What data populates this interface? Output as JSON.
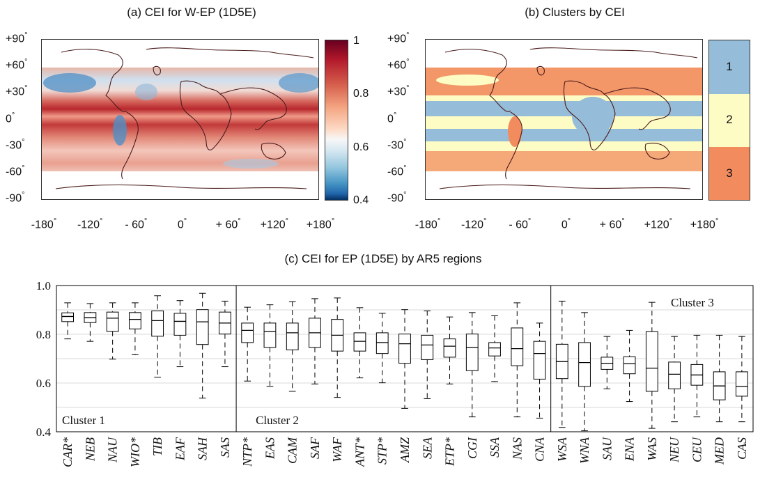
{
  "panels": {
    "a_title": "(a) CEI for W-EP (1D5E)",
    "b_title": "(b) Clusters by CEI",
    "c_title": "(c) CEI for EP (1D5E) by AR5 regions"
  },
  "map_ticks": {
    "lat": [
      "+90",
      "+60",
      "+30",
      "0",
      "-30",
      "-60",
      "-90"
    ],
    "lon": [
      "-180",
      "-120",
      "- 60",
      "0",
      "+ 60",
      "+120",
      "+180"
    ],
    "degree": "°"
  },
  "colorbar_a": {
    "labels": [
      "1",
      "0.8",
      "0.6",
      "0.4"
    ],
    "min": 0.4,
    "max": 1.0
  },
  "colorbar_b": {
    "labels": [
      "1",
      "2",
      "3"
    ],
    "colors": {
      "cluster1": "#95bcd8",
      "cluster2": "#fdfcc4",
      "cluster3": "#f28c5f"
    }
  },
  "colors": {
    "map_red": "#c3323a",
    "map_red_light": "#e8917f",
    "map_blue": "#4f8fc6",
    "map_white": "#f6f1ee",
    "coast": "#4a1a1a"
  },
  "chart_data": {
    "type": "boxplot",
    "ylim": [
      0.4,
      1.0
    ],
    "yticks": [
      "1.0",
      "0.8",
      "0.6",
      "0.4"
    ],
    "yticks_values": [
      1.0,
      0.8,
      0.6,
      0.4
    ],
    "gridlines": [
      0.5,
      0.6,
      0.7,
      0.8,
      0.9,
      1.0
    ],
    "cluster_labels": [
      "Cluster 1",
      "Cluster 2",
      "Cluster 3"
    ],
    "categories": [
      "CAR*",
      "NEB",
      "NAU",
      "WIO*",
      "TIB",
      "EAF",
      "SAH",
      "SAS",
      "NTP*",
      "EAS",
      "CAM",
      "SAF",
      "WAF",
      "ANT*",
      "STP*",
      "AMZ",
      "SEA",
      "ETP*",
      "CGI",
      "SSA",
      "NAS",
      "CNA",
      "WSA",
      "WNA",
      "SAU",
      "ENA",
      "WAS",
      "NEU",
      "CEU",
      "MED",
      "CAS"
    ],
    "cluster_breaks": [
      8,
      22
    ],
    "boxes": [
      {
        "q1": 0.852,
        "median": 0.873,
        "q3": 0.888,
        "whisker_low": 0.781,
        "whisker_high": 0.929
      },
      {
        "q1": 0.848,
        "median": 0.868,
        "q3": 0.889,
        "whisker_low": 0.771,
        "whisker_high": 0.926
      },
      {
        "q1": 0.812,
        "median": 0.866,
        "q3": 0.891,
        "whisker_low": 0.698,
        "whisker_high": 0.929
      },
      {
        "q1": 0.822,
        "median": 0.861,
        "q3": 0.889,
        "whisker_low": 0.716,
        "whisker_high": 0.929
      },
      {
        "q1": 0.792,
        "median": 0.856,
        "q3": 0.896,
        "whisker_low": 0.624,
        "whisker_high": 0.958
      },
      {
        "q1": 0.796,
        "median": 0.853,
        "q3": 0.886,
        "whisker_low": 0.667,
        "whisker_high": 0.938
      },
      {
        "q1": 0.758,
        "median": 0.851,
        "q3": 0.901,
        "whisker_low": 0.538,
        "whisker_high": 0.968
      },
      {
        "q1": 0.801,
        "median": 0.846,
        "q3": 0.891,
        "whisker_low": 0.667,
        "whisker_high": 0.936
      },
      {
        "q1": 0.766,
        "median": 0.816,
        "q3": 0.846,
        "whisker_low": 0.608,
        "whisker_high": 0.911
      },
      {
        "q1": 0.746,
        "median": 0.811,
        "q3": 0.846,
        "whisker_low": 0.586,
        "whisker_high": 0.921
      },
      {
        "q1": 0.736,
        "median": 0.806,
        "q3": 0.846,
        "whisker_low": 0.566,
        "whisker_high": 0.934
      },
      {
        "q1": 0.746,
        "median": 0.806,
        "q3": 0.866,
        "whisker_low": 0.596,
        "whisker_high": 0.946
      },
      {
        "q1": 0.731,
        "median": 0.796,
        "q3": 0.861,
        "whisker_low": 0.541,
        "whisker_high": 0.949
      },
      {
        "q1": 0.731,
        "median": 0.771,
        "q3": 0.806,
        "whisker_low": 0.621,
        "whisker_high": 0.909
      },
      {
        "q1": 0.721,
        "median": 0.766,
        "q3": 0.806,
        "whisker_low": 0.601,
        "whisker_high": 0.886
      },
      {
        "q1": 0.681,
        "median": 0.761,
        "q3": 0.801,
        "whisker_low": 0.496,
        "whisker_high": 0.901
      },
      {
        "q1": 0.696,
        "median": 0.756,
        "q3": 0.796,
        "whisker_low": 0.536,
        "whisker_high": 0.896
      },
      {
        "q1": 0.706,
        "median": 0.751,
        "q3": 0.781,
        "whisker_low": 0.596,
        "whisker_high": 0.871
      },
      {
        "q1": 0.651,
        "median": 0.746,
        "q3": 0.801,
        "whisker_low": 0.461,
        "whisker_high": 0.889
      },
      {
        "q1": 0.711,
        "median": 0.744,
        "q3": 0.766,
        "whisker_low": 0.606,
        "whisker_high": 0.876
      },
      {
        "q1": 0.671,
        "median": 0.741,
        "q3": 0.826,
        "whisker_low": 0.461,
        "whisker_high": 0.929
      },
      {
        "q1": 0.616,
        "median": 0.721,
        "q3": 0.771,
        "whisker_low": 0.456,
        "whisker_high": 0.846
      },
      {
        "q1": 0.618,
        "median": 0.688,
        "q3": 0.759,
        "whisker_low": 0.418,
        "whisker_high": 0.936
      },
      {
        "q1": 0.586,
        "median": 0.684,
        "q3": 0.766,
        "whisker_low": 0.404,
        "whisker_high": 0.889
      },
      {
        "q1": 0.656,
        "median": 0.681,
        "q3": 0.706,
        "whisker_low": 0.576,
        "whisker_high": 0.791
      },
      {
        "q1": 0.638,
        "median": 0.679,
        "q3": 0.708,
        "whisker_low": 0.524,
        "whisker_high": 0.816
      },
      {
        "q1": 0.566,
        "median": 0.661,
        "q3": 0.811,
        "whisker_low": 0.414,
        "whisker_high": 0.931
      },
      {
        "q1": 0.576,
        "median": 0.636,
        "q3": 0.686,
        "whisker_low": 0.441,
        "whisker_high": 0.791
      },
      {
        "q1": 0.591,
        "median": 0.633,
        "q3": 0.676,
        "whisker_low": 0.461,
        "whisker_high": 0.796
      },
      {
        "q1": 0.531,
        "median": 0.588,
        "q3": 0.646,
        "whisker_low": 0.441,
        "whisker_high": 0.796
      },
      {
        "q1": 0.546,
        "median": 0.586,
        "q3": 0.646,
        "whisker_low": 0.441,
        "whisker_high": 0.791
      }
    ],
    "cluster_groups": [
      {
        "label": "Cluster 1",
        "categories": [
          "CAR*",
          "NEB",
          "NAU",
          "WIO*",
          "TIB",
          "EAF",
          "SAH",
          "SAS"
        ]
      },
      {
        "label": "Cluster 2",
        "categories": [
          "NTP*",
          "EAS",
          "CAM",
          "SAF",
          "WAF",
          "ANT*",
          "STP*",
          "AMZ",
          "SEA",
          "ETP*",
          "CGI",
          "SSA",
          "NAS",
          "CNA"
        ]
      },
      {
        "label": "Cluster 3",
        "categories": [
          "WSA",
          "WNA",
          "SAU",
          "ENA",
          "WAS",
          "NEU",
          "CEU",
          "MED",
          "CAS"
        ]
      }
    ]
  }
}
